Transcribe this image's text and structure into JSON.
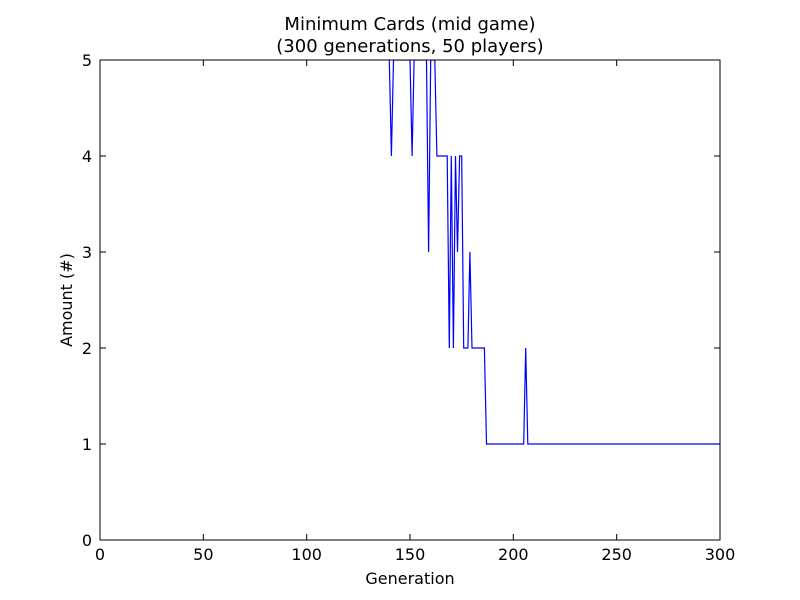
{
  "chart_data": {
    "type": "line",
    "title": "Minimum Cards (mid game)",
    "subtitle": "(300 generations, 50 players)",
    "xlabel": "Generation",
    "ylabel": "Amount (#)",
    "xlim": [
      0,
      300
    ],
    "ylim": [
      0,
      5
    ],
    "xticks": [
      "0",
      "50",
      "100",
      "150",
      "200",
      "250",
      "300"
    ],
    "yticks": [
      "0",
      "1",
      "2",
      "3",
      "4",
      "5"
    ],
    "grid": false,
    "line_color": "#0000ff",
    "series": [
      {
        "x": [
          140,
          141,
          142,
          150,
          151,
          152,
          158,
          159,
          160,
          162,
          163,
          168,
          169,
          170,
          171,
          172,
          173,
          174,
          175,
          176,
          177,
          178,
          179,
          180,
          186,
          187,
          205,
          206,
          207,
          300
        ],
        "values": [
          5,
          4,
          5,
          5,
          4,
          5,
          5,
          3,
          5,
          5,
          4,
          4,
          2,
          4,
          2,
          4,
          3,
          4,
          4,
          2,
          2,
          2,
          3,
          2,
          2,
          1,
          1,
          2,
          1,
          1
        ]
      }
    ]
  }
}
